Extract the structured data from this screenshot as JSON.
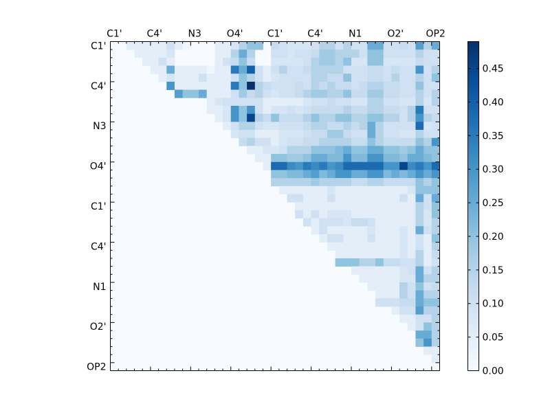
{
  "chart_data": {
    "type": "heatmap",
    "title": "",
    "colormap": "Blues",
    "x_tick_labels": [
      "C1'",
      "C4'",
      "N3",
      "O4'",
      "C1'",
      "C4'",
      "N1",
      "O2'",
      "OP2"
    ],
    "y_tick_labels": [
      "C1'",
      "C4'",
      "N3",
      "O4'",
      "C1'",
      "C4'",
      "N1",
      "O2'",
      "OP2"
    ],
    "grid_size": 41,
    "label_every": 5,
    "colorbar": {
      "min": 0.0,
      "max": 0.49,
      "ticks": [
        "0.00",
        "0.05",
        "0.10",
        "0.15",
        "0.20",
        "0.25",
        "0.30",
        "0.35",
        "0.40",
        "0.45"
      ]
    },
    "upper_triangle_only": true,
    "rows": [
      {
        "row": 0,
        "values": {
          "2": 0.05,
          "3": 0.05,
          "4": 0.05,
          "5": 0.05,
          "6": 0.05,
          "7": 0.1,
          "8": 0.05,
          "9": 0.02,
          "13": 0.05,
          "14": 0.05,
          "15": 0.08,
          "16": 0.15,
          "17": 0.2,
          "18": 0.2,
          "20": 0.12,
          "21": 0.1,
          "22": 0.08,
          "23": 0.08,
          "24": 0.08,
          "25": 0.1,
          "26": 0.15,
          "27": 0.15,
          "28": 0.1,
          "29": 0.15,
          "30": 0.1,
          "31": 0.1,
          "32": 0.25,
          "33": 0.25,
          "34": 0.1,
          "35": 0.1,
          "36": 0.12,
          "37": 0.1,
          "38": 0.28,
          "39": 0.15,
          "40": 0.25
        }
      },
      {
        "row": 1,
        "values": {
          "3": 0.05,
          "4": 0.05,
          "5": 0.05,
          "6": 0.05,
          "7": 0.08,
          "13": 0.05,
          "14": 0.05,
          "15": 0.15,
          "16": 0.25,
          "17": 0.15,
          "20": 0.1,
          "21": 0.1,
          "22": 0.08,
          "23": 0.1,
          "24": 0.1,
          "25": 0.12,
          "26": 0.18,
          "27": 0.18,
          "28": 0.15,
          "29": 0.15,
          "30": 0.15,
          "31": 0.1,
          "32": 0.2,
          "33": 0.2,
          "34": 0.1,
          "35": 0.1,
          "36": 0.1,
          "37": 0.1,
          "38": 0.15,
          "39": 0.1,
          "40": 0.1
        }
      },
      {
        "row": 2,
        "values": {
          "4": 0.05,
          "5": 0.05,
          "6": 0.1,
          "7": 0.05,
          "13": 0.05,
          "14": 0.1,
          "15": 0.12,
          "16": 0.2,
          "17": 0.12,
          "20": 0.08,
          "21": 0.08,
          "22": 0.08,
          "23": 0.08,
          "24": 0.1,
          "25": 0.15,
          "26": 0.18,
          "27": 0.18,
          "28": 0.15,
          "29": 0.2,
          "30": 0.08,
          "31": 0.08,
          "32": 0.2,
          "33": 0.2,
          "34": 0.08,
          "35": 0.08,
          "36": 0.08,
          "37": 0.08,
          "38": 0.12,
          "39": 0.1,
          "40": 0.1
        }
      },
      {
        "row": 3,
        "values": {
          "5": 0.05,
          "6": 0.05,
          "7": 0.25,
          "8": 0.05,
          "9": 0.05,
          "10": 0.05,
          "11": 0.05,
          "12": 0.02,
          "13": 0.05,
          "14": 0.05,
          "15": 0.35,
          "16": 0.25,
          "17": 0.4,
          "18": 0.1,
          "19": 0.05,
          "20": 0.1,
          "21": 0.15,
          "22": 0.1,
          "23": 0.1,
          "24": 0.12,
          "25": 0.15,
          "26": 0.15,
          "27": 0.15,
          "28": 0.15,
          "29": 0.1,
          "30": 0.1,
          "31": 0.1,
          "32": 0.12,
          "33": 0.12,
          "34": 0.1,
          "35": 0.12,
          "36": 0.1,
          "37": 0.1,
          "38": 0.3,
          "39": 0.1,
          "40": 0.15
        }
      },
      {
        "row": 4,
        "values": {
          "6": 0.05,
          "7": 0.08,
          "8": 0.05,
          "9": 0.05,
          "10": 0.05,
          "11": 0.1,
          "12": 0.05,
          "13": 0.05,
          "14": 0.05,
          "15": 0.1,
          "16": 0.2,
          "17": 0.15,
          "18": 0.1,
          "19": 0.05,
          "20": 0.08,
          "21": 0.1,
          "22": 0.1,
          "23": 0.1,
          "24": 0.1,
          "25": 0.15,
          "26": 0.15,
          "27": 0.12,
          "28": 0.12,
          "29": 0.2,
          "30": 0.1,
          "31": 0.1,
          "32": 0.12,
          "33": 0.12,
          "34": 0.1,
          "35": 0.15,
          "36": 0.1,
          "37": 0.1,
          "38": 0.15,
          "39": 0.1,
          "40": 0.2
        }
      },
      {
        "row": 5,
        "values": {
          "7": 0.3,
          "8": 0.05,
          "9": 0.05,
          "10": 0.05,
          "11": 0.05,
          "12": 0.05,
          "13": 0.05,
          "14": 0.05,
          "15": 0.35,
          "16": 0.2,
          "17": 0.49,
          "18": 0.15,
          "19": 0.12,
          "20": 0.1,
          "21": 0.1,
          "22": 0.1,
          "23": 0.12,
          "24": 0.1,
          "25": 0.15,
          "26": 0.12,
          "27": 0.15,
          "28": 0.12,
          "29": 0.12,
          "30": 0.1,
          "31": 0.12,
          "32": 0.15,
          "33": 0.15,
          "34": 0.12,
          "35": 0.12,
          "36": 0.1,
          "37": 0.1,
          "38": 0.2,
          "39": 0.1,
          "40": 0.1
        }
      },
      {
        "row": 6,
        "values": {
          "8": 0.28,
          "9": 0.2,
          "10": 0.2,
          "11": 0.25,
          "12": 0.05,
          "13": 0.05,
          "14": 0.05,
          "15": 0.1,
          "16": 0.18,
          "17": 0.12,
          "18": 0.15,
          "19": 0.1,
          "20": 0.08,
          "21": 0.1,
          "22": 0.1,
          "23": 0.12,
          "24": 0.15,
          "25": 0.18,
          "26": 0.18,
          "27": 0.15,
          "28": 0.15,
          "29": 0.2,
          "30": 0.12,
          "31": 0.12,
          "32": 0.18,
          "33": 0.18,
          "34": 0.12,
          "35": 0.12,
          "36": 0.1,
          "37": 0.1,
          "38": 0.15,
          "39": 0.1,
          "40": 0.15
        }
      },
      {
        "row": 7,
        "values": {
          "12": 0.05,
          "13": 0.08,
          "14": 0.1,
          "15": 0.1,
          "16": 0.1,
          "17": 0.1,
          "18": 0.1,
          "19": 0.05,
          "20": 0.05,
          "21": 0.05,
          "22": 0.05,
          "23": 0.05,
          "24": 0.08,
          "25": 0.1,
          "26": 0.1,
          "27": 0.12,
          "28": 0.1,
          "29": 0.1,
          "30": 0.08,
          "31": 0.08,
          "32": 0.15,
          "33": 0.15,
          "34": 0.1,
          "35": 0.1,
          "36": 0.08,
          "37": 0.08,
          "38": 0.15,
          "39": 0.08,
          "40": 0.15
        }
      },
      {
        "row": 8,
        "values": {
          "12": 0.05,
          "13": 0.05,
          "14": 0.08,
          "15": 0.3,
          "16": 0.2,
          "17": 0.3,
          "18": 0.1,
          "19": 0.05,
          "20": 0.08,
          "21": 0.08,
          "22": 0.1,
          "23": 0.08,
          "24": 0.1,
          "25": 0.12,
          "26": 0.12,
          "27": 0.12,
          "28": 0.12,
          "29": 0.15,
          "30": 0.12,
          "31": 0.12,
          "32": 0.15,
          "33": 0.15,
          "34": 0.12,
          "35": 0.12,
          "36": 0.1,
          "37": 0.15,
          "38": 0.35,
          "39": 0.1,
          "40": 0.1
        }
      },
      {
        "row": 9,
        "values": {
          "13": 0.05,
          "14": 0.08,
          "15": 0.3,
          "16": 0.2,
          "17": 0.45,
          "18": 0.15,
          "19": 0.12,
          "20": 0.2,
          "21": 0.12,
          "22": 0.12,
          "23": 0.12,
          "24": 0.15,
          "25": 0.2,
          "26": 0.15,
          "27": 0.15,
          "28": 0.2,
          "29": 0.2,
          "30": 0.15,
          "31": 0.15,
          "32": 0.2,
          "33": 0.2,
          "34": 0.15,
          "35": 0.15,
          "36": 0.1,
          "37": 0.15,
          "38": 0.3,
          "39": 0.15,
          "40": 0.12
        }
      },
      {
        "row": 10,
        "values": {
          "14": 0.05,
          "15": 0.1,
          "16": 0.15,
          "17": 0.15,
          "18": 0.1,
          "19": 0.08,
          "20": 0.08,
          "21": 0.1,
          "22": 0.1,
          "23": 0.1,
          "24": 0.12,
          "25": 0.15,
          "26": 0.15,
          "27": 0.12,
          "28": 0.12,
          "29": 0.15,
          "30": 0.12,
          "31": 0.15,
          "32": 0.25,
          "33": 0.15,
          "34": 0.1,
          "35": 0.1,
          "36": 0.1,
          "37": 0.1,
          "38": 0.38,
          "39": 0.08,
          "40": 0.1
        }
      },
      {
        "row": 11,
        "values": {
          "15": 0.08,
          "16": 0.1,
          "17": 0.1,
          "18": 0.05,
          "19": 0.05,
          "20": 0.05,
          "21": 0.08,
          "22": 0.08,
          "23": 0.08,
          "24": 0.1,
          "25": 0.12,
          "26": 0.12,
          "27": 0.18,
          "28": 0.18,
          "29": 0.12,
          "30": 0.1,
          "31": 0.1,
          "32": 0.25,
          "33": 0.15,
          "34": 0.1,
          "35": 0.1,
          "36": 0.08,
          "37": 0.08,
          "38": 0.15,
          "39": 0.1,
          "40": 0.1
        }
      },
      {
        "row": 12,
        "values": {
          "16": 0.12,
          "17": 0.15,
          "18": 0.1,
          "19": 0.1,
          "20": 0.05,
          "21": 0.08,
          "22": 0.1,
          "23": 0.1,
          "24": 0.12,
          "25": 0.12,
          "26": 0.15,
          "27": 0.15,
          "28": 0.15,
          "29": 0.15,
          "30": 0.12,
          "31": 0.12,
          "32": 0.2,
          "33": 0.15,
          "34": 0.12,
          "35": 0.12,
          "36": 0.12,
          "37": 0.12,
          "38": 0.2,
          "39": 0.15,
          "40": 0.3
        }
      },
      {
        "row": 13,
        "values": {
          "17": 0.05,
          "18": 0.05,
          "19": 0.08,
          "20": 0.08,
          "21": 0.1,
          "22": 0.15,
          "23": 0.15,
          "24": 0.15,
          "25": 0.2,
          "26": 0.2,
          "27": 0.2,
          "28": 0.22,
          "29": 0.25,
          "30": 0.2,
          "31": 0.2,
          "32": 0.25,
          "33": 0.25,
          "34": 0.2,
          "35": 0.2,
          "36": 0.18,
          "37": 0.2,
          "38": 0.25,
          "39": 0.2,
          "40": 0.2
        }
      },
      {
        "row": 14,
        "values": {
          "18": 0.05,
          "19": 0.05,
          "20": 0.2,
          "21": 0.2,
          "22": 0.18,
          "23": 0.18,
          "24": 0.2,
          "25": 0.25,
          "26": 0.25,
          "27": 0.22,
          "28": 0.22,
          "29": 0.3,
          "30": 0.22,
          "31": 0.22,
          "32": 0.3,
          "33": 0.3,
          "34": 0.22,
          "35": 0.22,
          "36": 0.2,
          "37": 0.25,
          "38": 0.25,
          "39": 0.22,
          "40": 0.2
        }
      },
      {
        "row": 15,
        "values": {
          "19": 0.05,
          "20": 0.38,
          "21": 0.38,
          "22": 0.32,
          "23": 0.3,
          "24": 0.35,
          "25": 0.32,
          "26": 0.35,
          "27": 0.3,
          "28": 0.32,
          "29": 0.38,
          "30": 0.38,
          "31": 0.38,
          "32": 0.38,
          "33": 0.38,
          "34": 0.3,
          "35": 0.3,
          "36": 0.45,
          "37": 0.32,
          "38": 0.35,
          "39": 0.3,
          "40": 0.38
        }
      },
      {
        "row": 16,
        "values": {
          "20": 0.2,
          "21": 0.2,
          "22": 0.22,
          "23": 0.22,
          "24": 0.25,
          "25": 0.28,
          "26": 0.22,
          "27": 0.25,
          "28": 0.3,
          "29": 0.3,
          "30": 0.25,
          "31": 0.25,
          "32": 0.3,
          "33": 0.3,
          "34": 0.22,
          "35": 0.25,
          "36": 0.22,
          "37": 0.25,
          "38": 0.3,
          "39": 0.25,
          "40": 0.3
        }
      },
      {
        "row": 17,
        "values": {
          "20": 0.15,
          "21": 0.15,
          "22": 0.15,
          "23": 0.15,
          "24": 0.15,
          "25": 0.18,
          "26": 0.15,
          "27": 0.15,
          "28": 0.15,
          "29": 0.15,
          "30": 0.12,
          "31": 0.12,
          "32": 0.15,
          "33": 0.15,
          "34": 0.12,
          "35": 0.12,
          "36": 0.12,
          "37": 0.12,
          "38": 0.2,
          "39": 0.15,
          "40": 0.2
        }
      },
      {
        "row": 18,
        "values": {
          "21": 0.05,
          "22": 0.05,
          "23": 0.05,
          "24": 0.05,
          "25": 0.05,
          "26": 0.05,
          "27": 0.08,
          "28": 0.05,
          "29": 0.05,
          "30": 0.05,
          "31": 0.05,
          "32": 0.05,
          "33": 0.05,
          "34": 0.05,
          "35": 0.05,
          "36": 0.05,
          "37": 0.08,
          "38": 0.2,
          "39": 0.2,
          "40": 0.2
        }
      },
      {
        "row": 19,
        "values": {
          "22": 0.1,
          "23": 0.1,
          "24": 0.05,
          "25": 0.05,
          "26": 0.05,
          "27": 0.1,
          "28": 0.05,
          "29": 0.05,
          "30": 0.05,
          "31": 0.05,
          "32": 0.05,
          "33": 0.05,
          "34": 0.05,
          "35": 0.05,
          "36": 0.1,
          "37": 0.05,
          "38": 0.25,
          "39": 0.1,
          "40": 0.25
        }
      },
      {
        "row": 20,
        "values": {
          "23": 0.05,
          "24": 0.05,
          "25": 0.05,
          "26": 0.05,
          "27": 0.05,
          "28": 0.05,
          "29": 0.05,
          "30": 0.05,
          "31": 0.05,
          "32": 0.05,
          "33": 0.05,
          "34": 0.05,
          "35": 0.05,
          "36": 0.05,
          "37": 0.05,
          "38": 0.15,
          "39": 0.1,
          "40": 0.2
        }
      },
      {
        "row": 21,
        "values": {
          "23": 0.1,
          "24": 0.05,
          "25": 0.1,
          "26": 0.05,
          "27": 0.08,
          "28": 0.08,
          "29": 0.08,
          "30": 0.05,
          "31": 0.05,
          "32": 0.05,
          "33": 0.05,
          "34": 0.05,
          "35": 0.05,
          "36": 0.05,
          "37": 0.05,
          "38": 0.15,
          "39": 0.08,
          "40": 0.2
        }
      },
      {
        "row": 22,
        "values": {
          "24": 0.1,
          "25": 0.05,
          "26": 0.1,
          "27": 0.1,
          "28": 0.1,
          "29": 0.08,
          "30": 0.12,
          "31": 0.12,
          "32": 0.1,
          "33": 0.05,
          "34": 0.05,
          "35": 0.05,
          "36": 0.05,
          "37": 0.05,
          "38": 0.15,
          "39": 0.08,
          "40": 0.15
        }
      },
      {
        "row": 23,
        "values": {
          "25": 0.05,
          "26": 0.1,
          "27": 0.05,
          "28": 0.05,
          "29": 0.05,
          "30": 0.05,
          "31": 0.05,
          "32": 0.08,
          "33": 0.05,
          "34": 0.05,
          "35": 0.05,
          "36": 0.08,
          "37": 0.05,
          "38": 0.25,
          "39": 0.1,
          "40": 0.15
        }
      },
      {
        "row": 24,
        "values": {
          "26": 0.05,
          "27": 0.1,
          "28": 0.1,
          "29": 0.05,
          "30": 0.05,
          "31": 0.05,
          "32": 0.1,
          "33": 0.05,
          "34": 0.05,
          "35": 0.05,
          "36": 0.08,
          "37": 0.05,
          "38": 0.1,
          "39": 0.05,
          "40": 0.2
        }
      },
      {
        "row": 25,
        "values": {
          "27": 0.05,
          "28": 0.05,
          "29": 0.05,
          "30": 0.05,
          "31": 0.05,
          "32": 0.05,
          "33": 0.05,
          "34": 0.05,
          "35": 0.05,
          "36": 0.08,
          "37": 0.05,
          "38": 0.1,
          "39": 0.05,
          "40": 0.15
        }
      },
      {
        "row": 26,
        "values": {
          "28": 0.05,
          "29": 0.05,
          "30": 0.05,
          "31": 0.05,
          "32": 0.05,
          "33": 0.05,
          "34": 0.05,
          "35": 0.05,
          "36": 0.08,
          "37": 0.05,
          "38": 0.15,
          "39": 0.05,
          "40": 0.12
        }
      },
      {
        "row": 27,
        "values": {
          "28": 0.2,
          "29": 0.2,
          "30": 0.2,
          "31": 0.15,
          "32": 0.15,
          "33": 0.2,
          "34": 0.12,
          "35": 0.12,
          "36": 0.1,
          "37": 0.1,
          "38": 0.15,
          "39": 0.05,
          "40": 0.1
        }
      },
      {
        "row": 28,
        "values": {
          "30": 0.05,
          "31": 0.05,
          "32": 0.05,
          "33": 0.05,
          "34": 0.05,
          "35": 0.05,
          "36": 0.08,
          "37": 0.1,
          "38": 0.25,
          "39": 0.1,
          "40": 0.15
        }
      },
      {
        "row": 29,
        "values": {
          "31": 0.05,
          "32": 0.05,
          "33": 0.05,
          "34": 0.05,
          "35": 0.05,
          "36": 0.08,
          "37": 0.08,
          "38": 0.25,
          "39": 0.15,
          "40": 0.15
        }
      },
      {
        "row": 30,
        "values": {
          "32": 0.05,
          "33": 0.05,
          "34": 0.05,
          "35": 0.05,
          "36": 0.15,
          "37": 0.1,
          "38": 0.2,
          "39": 0.1,
          "40": 0.12
        }
      },
      {
        "row": 31,
        "values": {
          "33": 0.05,
          "34": 0.05,
          "35": 0.05,
          "36": 0.15,
          "37": 0.1,
          "38": 0.25,
          "39": 0.15,
          "40": 0.15
        }
      },
      {
        "row": 32,
        "values": {
          "33": 0.1,
          "34": 0.1,
          "35": 0.1,
          "36": 0.12,
          "37": 0.12,
          "38": 0.25,
          "39": 0.2,
          "40": 0.2
        }
      },
      {
        "row": 33,
        "values": {
          "35": 0.05,
          "36": 0.1,
          "37": 0.1,
          "38": 0.28,
          "39": 0.15,
          "40": 0.15
        }
      },
      {
        "row": 34,
        "values": {
          "36": 0.05,
          "37": 0.05,
          "38": 0.1,
          "39": 0.1,
          "40": 0.15
        }
      },
      {
        "row": 35,
        "values": {
          "37": 0.05,
          "38": 0.1,
          "39": 0.2,
          "40": 0.15
        }
      },
      {
        "row": 36,
        "values": {
          "38": 0.25,
          "39": 0.25,
          "40": 0.15
        }
      },
      {
        "row": 37,
        "values": {
          "38": 0.2,
          "39": 0.3,
          "40": 0.15
        }
      },
      {
        "row": 38,
        "values": {
          "39": 0.05,
          "40": 0.05
        }
      },
      {
        "row": 39,
        "values": {
          "40": 0.05
        }
      }
    ]
  }
}
